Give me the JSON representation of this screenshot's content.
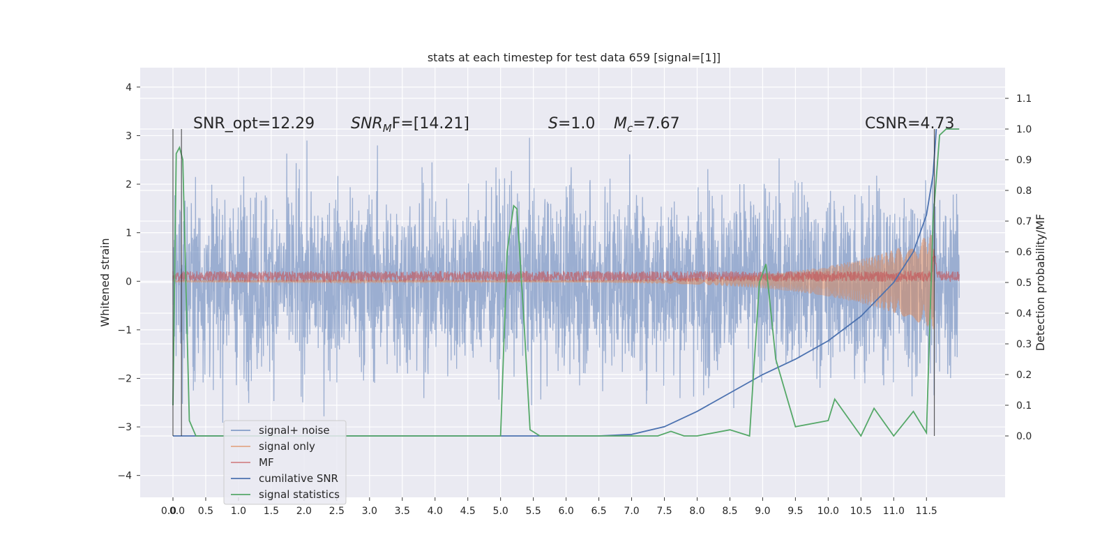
{
  "chart_data": {
    "type": "line",
    "title": "stats at each timestep for test data 659 [signal=[1]]",
    "xlabel": "",
    "ylabel": "Whitened strain",
    "ylabel_right": "Detection probability/MF",
    "xlim": [
      -0.5,
      12.7
    ],
    "ylim": [
      -4.45,
      4.4
    ],
    "ylim_right": [
      -0.2,
      1.2
    ],
    "grid": true,
    "legend_position": "lower-left",
    "x_ticks": [
      "0.0",
      "0.0",
      "0.5",
      "1.0",
      "1.5",
      "2.0",
      "2.5",
      "3.0",
      "3.5",
      "4.0",
      "4.5",
      "5.0",
      "5.5",
      "6.0",
      "6.5",
      "7.0",
      "7.5",
      "8.0",
      "8.5",
      "9.0",
      "9.5",
      "10.0",
      "10.5",
      "11.0",
      "11.5"
    ],
    "y_ticks": [
      "4",
      "3",
      "2",
      "1",
      "0",
      "−1",
      "−2",
      "−3",
      "−4"
    ],
    "y_ticks_right": [
      "1.1",
      "1.0",
      "0.9",
      "0.8",
      "0.7",
      "0.6",
      "0.5",
      "0.4",
      "0.3",
      "0.2",
      "0.1",
      "0.0"
    ],
    "annotations": {
      "snr_opt": "SNR_opt=12.29",
      "snr_mf_main": "SNR",
      "snr_mf_sub": "M",
      "snr_mf_rest": "F=[14.21]",
      "s_label": "S",
      "s_value": "=1.0",
      "mc_label": "M",
      "mc_sub": "c",
      "mc_value": "=7.67",
      "csnr": "CSNR=4.73"
    },
    "series": [
      {
        "name": "signal+ noise",
        "color": "#4c72b0",
        "x_range": [
          0.0,
          12.0
        ],
        "y_range": [
          -4.0,
          4.0
        ]
      },
      {
        "name": "signal only",
        "color": "#dd8452",
        "x_range": [
          0.0,
          12.0
        ],
        "amplitude_start": 0.02,
        "amplitude_end": 1.0
      },
      {
        "name": "MF",
        "color": "#c44e52",
        "x_range": [
          0.0,
          12.0
        ],
        "y_range": [
          0.0,
          0.25
        ]
      },
      {
        "name": "cumilative SNR",
        "color": "#4c72b0",
        "x": [
          0.0,
          6.5,
          7.0,
          7.5,
          8.0,
          8.5,
          9.0,
          9.5,
          10.0,
          10.5,
          11.0,
          11.3,
          11.5,
          11.6,
          11.65
        ],
        "y": [
          0.0,
          0.0,
          0.005,
          0.03,
          0.08,
          0.14,
          0.2,
          0.25,
          0.31,
          0.39,
          0.5,
          0.6,
          0.72,
          0.85,
          1.0
        ]
      },
      {
        "name": "signal statistics",
        "color": "#55a868",
        "x": [
          0.0,
          0.05,
          0.1,
          0.15,
          0.25,
          0.35,
          5.0,
          5.1,
          5.2,
          5.25,
          5.35,
          5.45,
          5.6,
          7.4,
          7.6,
          7.8,
          8.0,
          8.5,
          8.8,
          8.95,
          9.05,
          9.2,
          9.5,
          10.0,
          10.1,
          10.5,
          10.7,
          11.0,
          11.3,
          11.5,
          11.6,
          11.7,
          11.8,
          12.0
        ],
        "y": [
          0.1,
          0.92,
          0.94,
          0.9,
          0.05,
          0.0,
          0.0,
          0.6,
          0.75,
          0.74,
          0.4,
          0.02,
          0.0,
          0.0,
          0.015,
          0.0,
          0.0,
          0.02,
          0.0,
          0.5,
          0.56,
          0.25,
          0.03,
          0.05,
          0.12,
          0.0,
          0.09,
          0.0,
          0.08,
          0.01,
          0.7,
          0.98,
          1.0,
          1.0
        ]
      }
    ],
    "markers": {
      "vertical_lines": [
        0.0,
        0.13,
        11.62
      ]
    }
  }
}
